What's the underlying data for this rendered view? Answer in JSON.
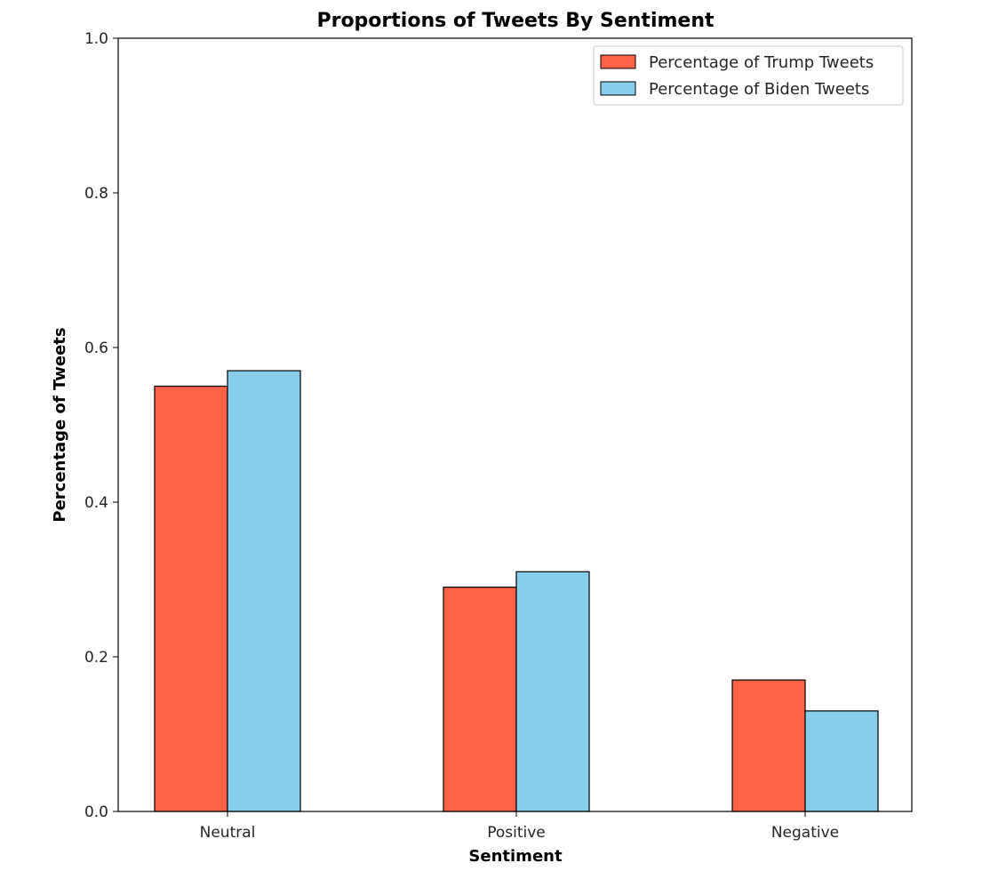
{
  "chart_data": {
    "type": "bar",
    "title": "Proportions of Tweets By Sentiment",
    "xlabel": "Sentiment",
    "ylabel": "Percentage of Tweets",
    "categories": [
      "Neutral",
      "Positive",
      "Negative"
    ],
    "series": [
      {
        "name": "Percentage of Trump Tweets",
        "values": [
          0.55,
          0.29,
          0.17
        ],
        "color": "#ff6347"
      },
      {
        "name": "Percentage of Biden Tweets",
        "values": [
          0.57,
          0.31,
          0.13
        ],
        "color": "#87ceeb"
      }
    ],
    "ylim": [
      0.0,
      1.0
    ],
    "yticks": [
      "0.0",
      "0.2",
      "0.4",
      "0.6",
      "0.8",
      "1.0"
    ],
    "grid": false,
    "legend_position": "top-right"
  }
}
